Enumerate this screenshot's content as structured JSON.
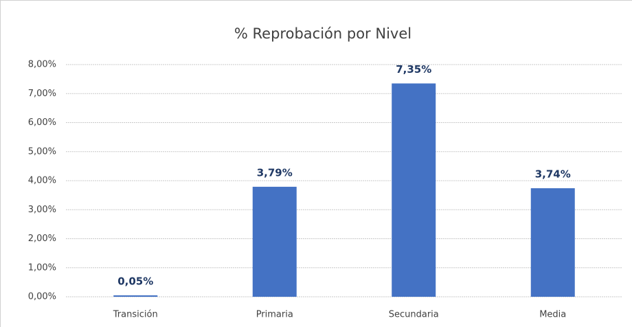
{
  "chart_data": {
    "type": "bar",
    "title": "% Reprobación por Nivel",
    "categories": [
      "Transición",
      "Primaria",
      "Secundaria",
      "Media"
    ],
    "values": [
      0.05,
      3.79,
      7.35,
      3.74
    ],
    "value_labels": [
      "0,05%",
      "3,79%",
      "7,35%",
      "3,74%"
    ],
    "color": "#4472c4",
    "ylim": [
      0,
      8
    ],
    "yticks": [
      {
        "value": 0,
        "label": "0,00%"
      },
      {
        "value": 1,
        "label": "1,00%"
      },
      {
        "value": 2,
        "label": "2,00%"
      },
      {
        "value": 3,
        "label": "3,00%"
      },
      {
        "value": 4,
        "label": "4,00%"
      },
      {
        "value": 5,
        "label": "5,00%"
      },
      {
        "value": 6,
        "label": "6,00%"
      },
      {
        "value": 7,
        "label": "7,00%"
      },
      {
        "value": 8,
        "label": "8,00%"
      }
    ],
    "grid": true
  }
}
